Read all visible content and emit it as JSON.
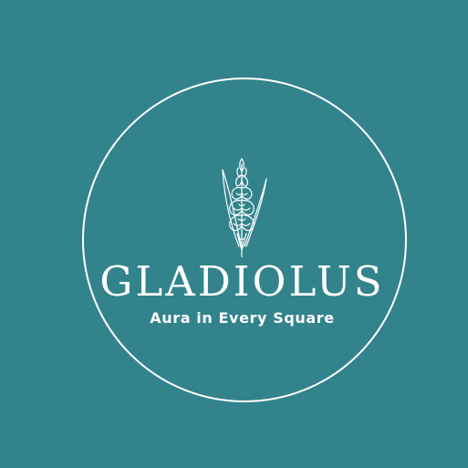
{
  "logo": {
    "brand_name": "GLADIOLUS",
    "tagline": "Aura in Every Square",
    "icon": "gladiolus-flower-icon"
  },
  "colors": {
    "background": "#32838c",
    "foreground": "#ffffff"
  }
}
